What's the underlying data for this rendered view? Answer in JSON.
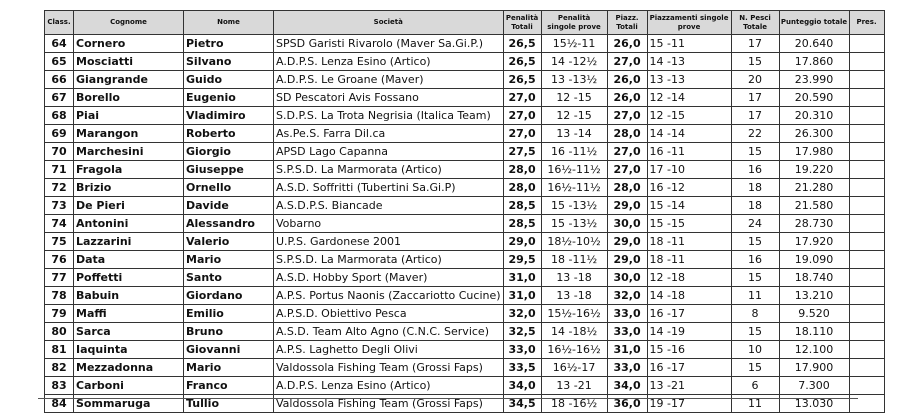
{
  "headers": {
    "class": "Class.",
    "surname": "Cognome",
    "name": "Nome",
    "club": "Società",
    "penalty_total": "Penalità Totali",
    "penalty_single": "Penalità singole prove",
    "placement_total": "Piazz. Totali",
    "placements_single": "Piazzamenti singole prove",
    "fish_total": "N. Pesci Totale",
    "score_total": "Punteggio totale",
    "pres": "Pres."
  },
  "rows": [
    {
      "pos": "64",
      "surname": "Cornero",
      "name": "Pietro",
      "club": "SPSD Garisti Rivarolo (Maver Sa.Gi.P.)",
      "pen_tot": "26,5",
      "pen_single": "15½-11",
      "plac_tot": "26,0",
      "plac_single": "15 -11",
      "fish": "17",
      "score": "20.640",
      "pres": ""
    },
    {
      "pos": "65",
      "surname": "Mosciatti",
      "name": "Silvano",
      "club": "A.D.P.S. Lenza Esino (Artico)",
      "pen_tot": "26,5",
      "pen_single": "14 -12½",
      "plac_tot": "27,0",
      "plac_single": "14 -13",
      "fish": "15",
      "score": "17.860",
      "pres": ""
    },
    {
      "pos": "66",
      "surname": "Giangrande",
      "name": "Guido",
      "club": "A.D.P.S. Le Groane (Maver)",
      "pen_tot": "26,5",
      "pen_single": "13 -13½",
      "plac_tot": "26,0",
      "plac_single": "13 -13",
      "fish": "20",
      "score": "23.990",
      "pres": ""
    },
    {
      "pos": "67",
      "surname": "Borello",
      "name": "Eugenio",
      "club": "SD Pescatori Avis Fossano",
      "pen_tot": "27,0",
      "pen_single": "12 -15",
      "plac_tot": "26,0",
      "plac_single": "12 -14",
      "fish": "17",
      "score": "20.590",
      "pres": ""
    },
    {
      "pos": "68",
      "surname": "Piai",
      "name": "Vladimiro",
      "club": "S.D.P.S. La Trota Negrisia (Italica Team)",
      "pen_tot": "27,0",
      "pen_single": "12 -15",
      "plac_tot": "27,0",
      "plac_single": "12 -15",
      "fish": "17",
      "score": "20.310",
      "pres": ""
    },
    {
      "pos": "69",
      "surname": "Marangon",
      "name": "Roberto",
      "club": "As.Pe.S. Farra Dil.ca",
      "pen_tot": "27,0",
      "pen_single": "13 -14",
      "plac_tot": "28,0",
      "plac_single": "14 -14",
      "fish": "22",
      "score": "26.300",
      "pres": ""
    },
    {
      "pos": "70",
      "surname": "Marchesini",
      "name": "Giorgio",
      "club": "APSD Lago Capanna",
      "pen_tot": "27,5",
      "pen_single": "16 -11½",
      "plac_tot": "27,0",
      "plac_single": "16 -11",
      "fish": "15",
      "score": "17.980",
      "pres": ""
    },
    {
      "pos": "71",
      "surname": "Fragola",
      "name": "Giuseppe",
      "club": "S.P.S.D. La Marmorata (Artico)",
      "pen_tot": "28,0",
      "pen_single": "16½-11½",
      "plac_tot": "27,0",
      "plac_single": "17 -10",
      "fish": "16",
      "score": "19.220",
      "pres": ""
    },
    {
      "pos": "72",
      "surname": "Brizio",
      "name": "Ornello",
      "club": "A.S.D. Soffritti (Tubertini Sa.Gi.P)",
      "pen_tot": "28,0",
      "pen_single": "16½-11½",
      "plac_tot": "28,0",
      "plac_single": "16 -12",
      "fish": "18",
      "score": "21.280",
      "pres": ""
    },
    {
      "pos": "73",
      "surname": "De Pieri",
      "name": "Davide",
      "club": "A.S.D.P.S. Biancade",
      "pen_tot": "28,5",
      "pen_single": "15 -13½",
      "plac_tot": "29,0",
      "plac_single": "15 -14",
      "fish": "18",
      "score": "21.580",
      "pres": ""
    },
    {
      "pos": "74",
      "surname": "Antonini",
      "name": "Alessandro",
      "club": "Vobarno",
      "pen_tot": "28,5",
      "pen_single": "15 -13½",
      "plac_tot": "30,0",
      "plac_single": "15 -15",
      "fish": "24",
      "score": "28.730",
      "pres": ""
    },
    {
      "pos": "75",
      "surname": "Lazzarini",
      "name": "Valerio",
      "club": "U.P.S. Gardonese 2001",
      "pen_tot": "29,0",
      "pen_single": "18½-10½",
      "plac_tot": "29,0",
      "plac_single": "18 -11",
      "fish": "15",
      "score": "17.920",
      "pres": ""
    },
    {
      "pos": "76",
      "surname": "Data",
      "name": "Mario",
      "club": "S.P.S.D. La Marmorata (Artico)",
      "pen_tot": "29,5",
      "pen_single": "18 -11½",
      "plac_tot": "29,0",
      "plac_single": "18 -11",
      "fish": "16",
      "score": "19.090",
      "pres": ""
    },
    {
      "pos": "77",
      "surname": "Poffetti",
      "name": "Santo",
      "club": "A.S.D. Hobby Sport (Maver)",
      "pen_tot": "31,0",
      "pen_single": "13 -18",
      "plac_tot": "30,0",
      "plac_single": "12 -18",
      "fish": "15",
      "score": "18.740",
      "pres": ""
    },
    {
      "pos": "78",
      "surname": "Babuin",
      "name": "Giordano",
      "club": "A.P.S. Portus Naonis (Zaccariotto Cucine)",
      "pen_tot": "31,0",
      "pen_single": "13 -18",
      "plac_tot": "32,0",
      "plac_single": "14 -18",
      "fish": "11",
      "score": "13.210",
      "pres": ""
    },
    {
      "pos": "79",
      "surname": "Maffi",
      "name": "Emilio",
      "club": "A.P.S.D. Obiettivo Pesca",
      "pen_tot": "32,0",
      "pen_single": "15½-16½",
      "plac_tot": "33,0",
      "plac_single": "16 -17",
      "fish": "8",
      "score": "9.520",
      "pres": ""
    },
    {
      "pos": "80",
      "surname": "Sarca",
      "name": "Bruno",
      "club": "A.S.D. Team Alto Agno (C.N.C. Service)",
      "pen_tot": "32,5",
      "pen_single": "14 -18½",
      "plac_tot": "33,0",
      "plac_single": "14 -19",
      "fish": "15",
      "score": "18.110",
      "pres": ""
    },
    {
      "pos": "81",
      "surname": "Iaquinta",
      "name": "Giovanni",
      "club": "A.P.S. Laghetto Degli Olivi",
      "pen_tot": "33,0",
      "pen_single": "16½-16½",
      "plac_tot": "31,0",
      "plac_single": "15 -16",
      "fish": "10",
      "score": "12.100",
      "pres": ""
    },
    {
      "pos": "82",
      "surname": "Mezzadonna",
      "name": "Mario",
      "club": "Valdossola Fishing Team (Grossi Faps)",
      "pen_tot": "33,5",
      "pen_single": "16½-17",
      "plac_tot": "33,0",
      "plac_single": "16 -17",
      "fish": "15",
      "score": "17.900",
      "pres": ""
    },
    {
      "pos": "83",
      "surname": "Carboni",
      "name": "Franco",
      "club": "A.D.P.S. Lenza Esino (Artico)",
      "pen_tot": "34,0",
      "pen_single": "13 -21",
      "plac_tot": "34,0",
      "plac_single": "13 -21",
      "fish": "6",
      "score": "7.300",
      "pres": ""
    },
    {
      "pos": "84",
      "surname": "Sommaruga",
      "name": "Tullio",
      "club": "Valdossola Fishing Team (Grossi Faps)",
      "pen_tot": "34,5",
      "pen_single": "18 -16½",
      "plac_tot": "36,0",
      "plac_single": "19 -17",
      "fish": "11",
      "score": "13.030",
      "pres": ""
    }
  ]
}
